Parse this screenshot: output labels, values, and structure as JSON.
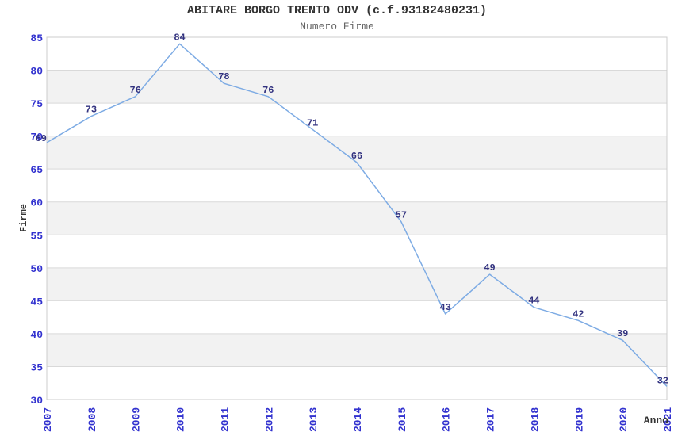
{
  "chart_data": {
    "type": "line",
    "title": "ABITARE BORGO TRENTO ODV (c.f.93182480231)",
    "subtitle": "Numero Firme",
    "xlabel": "Anno",
    "ylabel": "Firme",
    "categories": [
      "2007",
      "2008",
      "2009",
      "2010",
      "2011",
      "2012",
      "2013",
      "2014",
      "2015",
      "2016",
      "2017",
      "2018",
      "2019",
      "2020",
      "2021"
    ],
    "series": [
      {
        "name": "Numero Firme",
        "values": [
          69,
          73,
          76,
          84,
          78,
          76,
          71,
          66,
          57,
          43,
          49,
          44,
          42,
          39,
          32
        ]
      }
    ],
    "data_labels_visible": true,
    "ylim": [
      30,
      85
    ],
    "y_tick_step": 5,
    "y_ticks": [
      30,
      35,
      40,
      45,
      50,
      55,
      60,
      65,
      70,
      75,
      80,
      85
    ],
    "x_tick_rotation": -90,
    "grid": "horizontal",
    "plot_bands": "alternating white/gray horizontal stripes, 5 units each",
    "legend": "none",
    "colors": {
      "line": "#7dabe4",
      "tick_label": "#3232cf",
      "data_label": "#333380",
      "title": "#333333",
      "subtitle": "#666666",
      "axis_title": "#333333",
      "band": "#f2f2f2",
      "gridline": "#d9d9d9",
      "plot_border": "#cccccc",
      "background": "#ffffff"
    }
  }
}
